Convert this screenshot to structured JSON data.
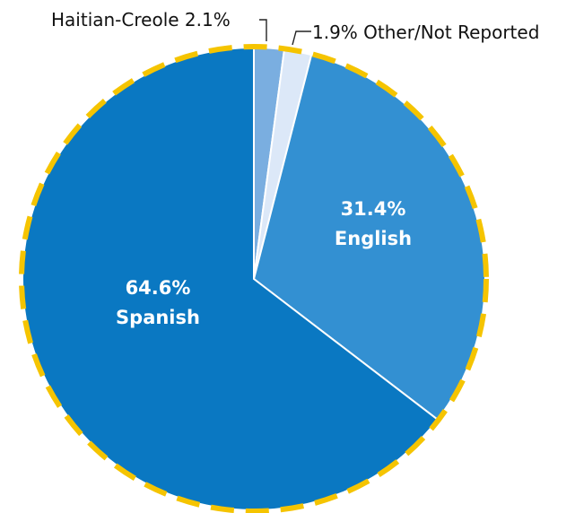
{
  "chart_data": {
    "type": "pie",
    "title": "",
    "start": "top",
    "direction": "clockwise",
    "border": {
      "color": "#F5C400",
      "style": "dashed"
    },
    "slices": [
      {
        "key": "haitian",
        "name": "Haitian-Creole",
        "value": 2.1,
        "value_label": "2.1%",
        "color": "#7AAEE0",
        "label_position": "outside-left"
      },
      {
        "key": "other",
        "name": "Other/Not Reported",
        "value": 1.9,
        "value_label": "1.9%",
        "color": "#DCE8F8",
        "label_position": "outside-right"
      },
      {
        "key": "english",
        "name": "English",
        "value": 31.4,
        "value_label": "31.4%",
        "color": "#3390D2",
        "label_position": "inside"
      },
      {
        "key": "spanish",
        "name": "Spanish",
        "value": 64.6,
        "value_label": "64.6%",
        "color": "#0A78C2",
        "label_position": "inside"
      }
    ]
  }
}
